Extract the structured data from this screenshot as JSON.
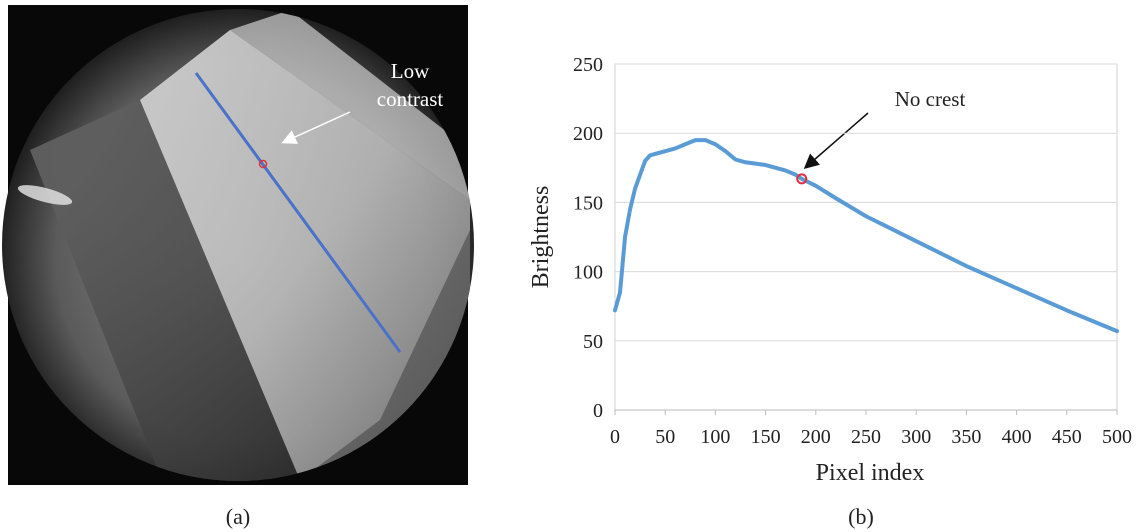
{
  "panel_a": {
    "label": "(a)",
    "annotation": [
      "Low",
      "contrast"
    ]
  },
  "panel_b": {
    "label": "(b)"
  },
  "chart_data": {
    "type": "line",
    "xlabel": "Pixel index",
    "ylabel": "Brightness",
    "x": [
      0,
      5,
      10,
      15,
      20,
      25,
      30,
      35,
      40,
      50,
      60,
      70,
      80,
      90,
      100,
      110,
      120,
      130,
      140,
      150,
      160,
      170,
      180,
      186,
      200,
      220,
      250,
      300,
      350,
      400,
      450,
      500
    ],
    "values": [
      72,
      85,
      125,
      145,
      160,
      170,
      180,
      184,
      185,
      187,
      189,
      192,
      195,
      195,
      192,
      187,
      181,
      179,
      178,
      177,
      175,
      173,
      170,
      167,
      162,
      153,
      140,
      122,
      104,
      88,
      72,
      57
    ],
    "color": "#5b9bd5",
    "xlim": [
      0,
      500
    ],
    "ylim": [
      0,
      250
    ],
    "xticks": [
      0,
      50,
      100,
      150,
      200,
      250,
      300,
      350,
      400,
      450,
      500
    ],
    "yticks": [
      0,
      50,
      100,
      150,
      200,
      250
    ],
    "grid": true,
    "highlight": {
      "x": 186,
      "y": 167,
      "color": "#e0303a"
    },
    "annotation": {
      "text": "No crest"
    }
  }
}
